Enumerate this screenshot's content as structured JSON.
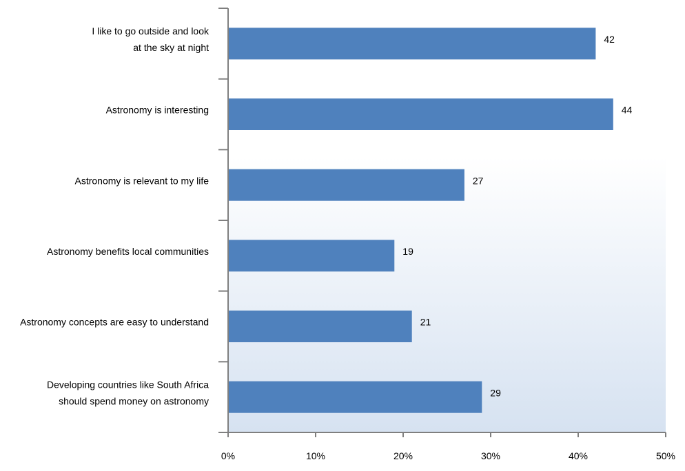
{
  "chart_data": {
    "type": "bar",
    "orientation": "horizontal",
    "categories": [
      [
        "I like to go outside and look",
        "at the sky at night"
      ],
      [
        "Astronomy is interesting"
      ],
      [
        "Astronomy is relevant to my life"
      ],
      [
        "Astronomy benefits local communities"
      ],
      [
        "Astronomy concepts are easy to understand"
      ],
      [
        "Developing countries like South Africa",
        "should spend money on astronomy"
      ]
    ],
    "values": [
      42,
      44,
      27,
      19,
      21,
      29
    ],
    "data_labels": [
      "42",
      "44",
      "27",
      "19",
      "21",
      "29"
    ],
    "x_ticks": [
      0,
      10,
      20,
      30,
      40,
      50
    ],
    "x_tick_labels": [
      "0%",
      "10%",
      "20%",
      "30%",
      "40%",
      "50%"
    ],
    "xlim": [
      0,
      50
    ],
    "title": "",
    "xlabel": "",
    "ylabel": "",
    "grid": false,
    "legend": "none",
    "colors": {
      "bar": "#4f81bd",
      "axis": "#7f7f7f",
      "plot_gradient_start": "#ffffff",
      "plot_gradient_end": "#d6e2f1"
    }
  }
}
